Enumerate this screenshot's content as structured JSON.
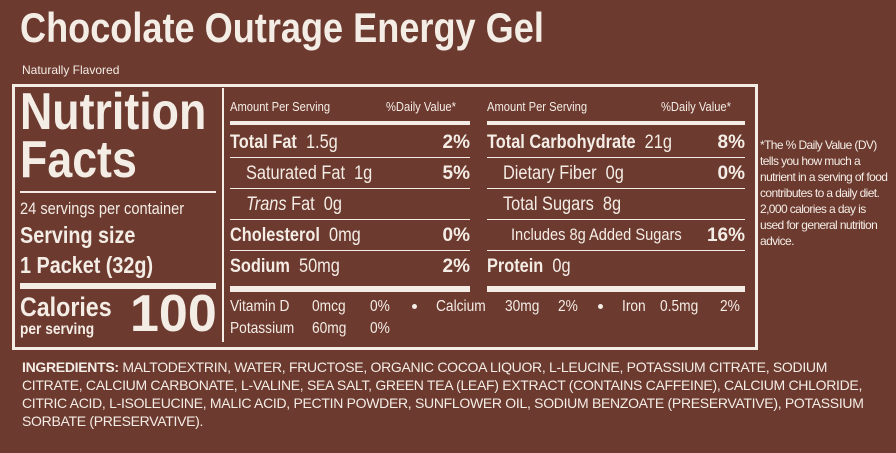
{
  "header": {
    "title": "Chocolate Outrage Energy Gel",
    "subtitle": "Naturally Flavored"
  },
  "facts": {
    "heading": [
      "Nutrition",
      "Facts"
    ],
    "servings": "24 servings per container",
    "serving_size_label": "Serving size",
    "serving_size": "1 Packet (32g)",
    "calories_label": "Calories",
    "calories_sub": "per serving",
    "calories": "100"
  },
  "left_table": {
    "header": [
      "Amount Per Serving",
      "%Daily Value*"
    ],
    "rows": [
      {
        "name": "Total Fat",
        "amount": "1.5g",
        "dv": "2%",
        "bold": true
      },
      {
        "name": "Saturated Fat",
        "amount": "1g",
        "dv": "5%",
        "indent": true
      },
      {
        "name_italic": "Trans",
        "name": "Fat",
        "amount": "0g",
        "indent": true
      },
      {
        "name": "Cholesterol",
        "amount": "0mg",
        "dv": "0%",
        "bold": true
      },
      {
        "name": "Sodium",
        "amount": "50mg",
        "dv": "2%",
        "bold": true
      }
    ]
  },
  "right_table": {
    "header": [
      "Amount Per Serving",
      "%Daily Value*"
    ],
    "rows": [
      {
        "name": "Total Carbohydrate",
        "amount": "21g",
        "dv": "8%",
        "bold": true
      },
      {
        "name": "Dietary Fiber",
        "amount": "0g",
        "dv": "0%",
        "indent": true
      },
      {
        "name": "Total Sugars",
        "amount": "8g",
        "indent": true
      },
      {
        "name": "Includes 8g Added Sugars",
        "dv": "16%",
        "indent": true,
        "sub": true
      },
      {
        "name": "Protein",
        "amount": "0g",
        "bold": true
      }
    ]
  },
  "vitamins": [
    {
      "name": "Vitamin D",
      "amount": "0mcg",
      "dv": "0%"
    },
    {
      "name": "Calcium",
      "amount": "30mg",
      "dv": "2%"
    },
    {
      "name": "Iron",
      "amount": "0.5mg",
      "dv": "2%"
    },
    {
      "name": "Potassium",
      "amount": "60mg",
      "dv": "0%"
    }
  ],
  "footnote": "*The % Daily Value (DV) tells you how much a nutrient in a serving of food contributes to a daily diet. 2,000 calories a day is used for general nutrition advice.",
  "ingredients": {
    "label": "INGREDIENTS:",
    "text": "MALTODEXTRIN, WATER, FRUCTOSE, ORGANIC COCOA LIQUOR, L-LEUCINE, POTASSIUM CITRATE, SODIUM CITRATE, CALCIUM CARBONATE, L-VALINE, SEA SALT, GREEN TEA (LEAF) EXTRACT (CONTAINS CAFFEINE), CALCIUM CHLORIDE, CITRIC ACID, L-ISOLEUCINE, MALIC ACID, PECTIN POWDER, SUNFLOWER OIL, SODIUM BENZOATE (PRESERVATIVE), POTASSIUM SORBATE (PRESERVATIVE)."
  }
}
